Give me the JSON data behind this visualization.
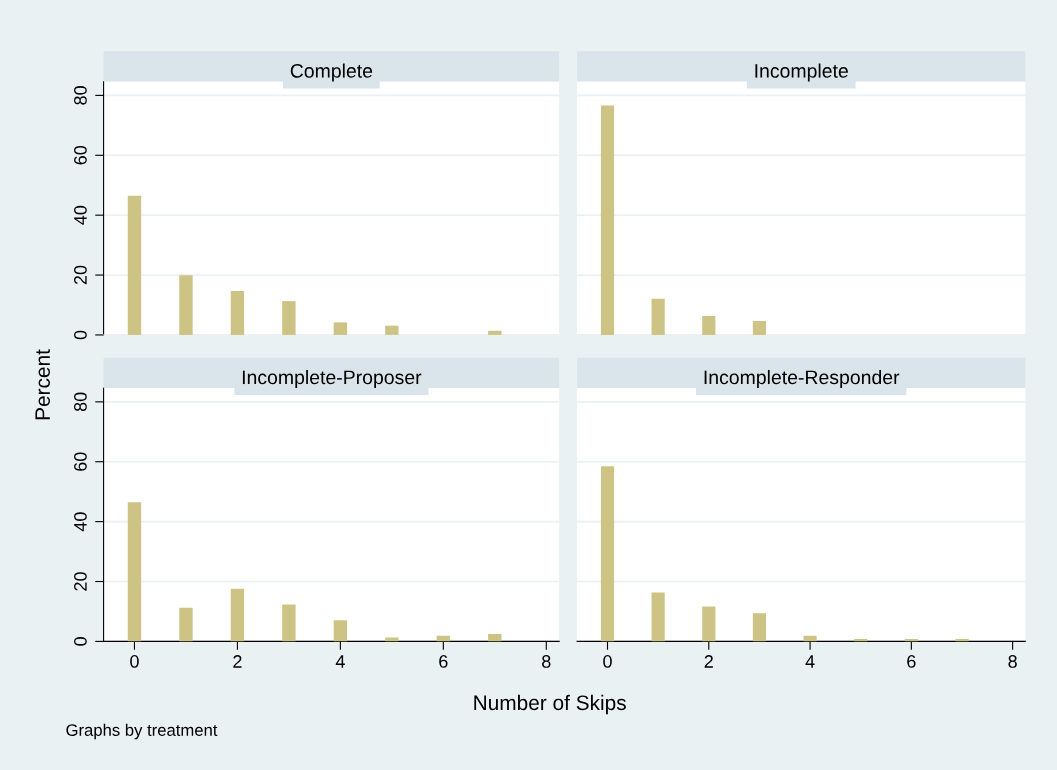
{
  "chart_data": [
    {
      "type": "bar",
      "title": "Complete",
      "ylabel": "Percent",
      "x": [
        0,
        1,
        2,
        3,
        4,
        5,
        6,
        7
      ],
      "values": [
        46.5,
        19.9,
        14.7,
        11.3,
        4.2,
        3.1,
        0,
        1.4
      ],
      "color": "#cdc384",
      "xlim": [
        -0.6,
        8.25
      ],
      "ylim": [
        0,
        84.6
      ],
      "yticks": [
        0,
        20,
        40,
        60,
        80
      ],
      "xticks": [
        0,
        2,
        4,
        6,
        8
      ],
      "grid": "y",
      "tick_labels": "y"
    },
    {
      "type": "bar",
      "title": "Incomplete",
      "x": [
        0,
        1,
        2,
        3,
        4,
        5,
        6,
        7
      ],
      "values": [
        76.6,
        12.1,
        6.3,
        4.7,
        0,
        0,
        0,
        0
      ],
      "color": "#cdc384",
      "xlim": [
        -0.6,
        8.25
      ],
      "ylim": [
        0,
        84.6
      ],
      "yticks": [
        0,
        20,
        40,
        60,
        80
      ],
      "xticks": [
        0,
        2,
        4,
        6,
        8
      ],
      "grid": "y",
      "tick_labels": false
    },
    {
      "type": "bar",
      "title": "Incomplete-Proposer",
      "xlabel": "Number of Skips",
      "x": [
        0,
        1,
        2,
        3,
        4,
        5,
        6,
        7
      ],
      "values": [
        46.5,
        11.2,
        17.6,
        12.3,
        7.1,
        1.3,
        1.9,
        2.5
      ],
      "color": "#cdc384",
      "xlim": [
        -0.6,
        8.25
      ],
      "ylim": [
        0,
        84.6
      ],
      "yticks": [
        0,
        20,
        40,
        60,
        80
      ],
      "xticks": [
        0,
        2,
        4,
        6,
        8
      ],
      "grid": "y"
    },
    {
      "type": "bar",
      "title": "Incomplete-Responder",
      "annotations": [
        "Graphs by treatment"
      ],
      "x": [
        0,
        1,
        2,
        3,
        4,
        5,
        6,
        7
      ],
      "values": [
        58.5,
        16.3,
        11.7,
        9.4,
        1.9,
        0.8,
        0.8,
        0.8
      ],
      "color": "#cdc384",
      "xlim": [
        -0.6,
        8.25
      ],
      "ylim": [
        0,
        84.6
      ],
      "yticks": [
        0,
        20,
        40,
        60,
        80
      ],
      "xticks": [
        0,
        2,
        4,
        6,
        8
      ],
      "grid": "y",
      "tick_labels": "x"
    }
  ]
}
